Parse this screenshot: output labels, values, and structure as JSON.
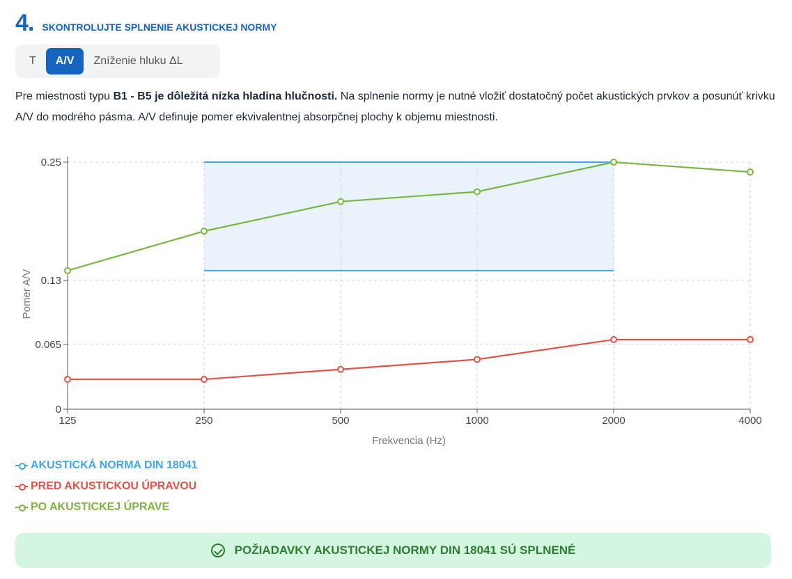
{
  "step": {
    "number": "4.",
    "title": "SKONTROLUJTE SPLNENIE AKUSTICKEJ NORMY"
  },
  "tabs": [
    {
      "label": "T",
      "active": false
    },
    {
      "label": "A/V",
      "active": true
    },
    {
      "label": "Zníženie hluku ΔL",
      "active": false
    }
  ],
  "description": {
    "part1": "Pre miestnosti typu ",
    "bold": "B1 - B5 je dôležitá nízka hladina hlučnosti.",
    "part2": " Na splnenie normy je nutné vložiť dostatočný počet akustických prvkov a posunúť krivku A/V do modrého pásma. A/V definuje pomer ekvivalentnej absorpčnej plochy k objemu miestnosti."
  },
  "colors": {
    "norm": "#42a5e5",
    "before": "#e0524a",
    "after": "#7cb342",
    "band_fill": "#e8f3fc"
  },
  "chart_data": {
    "type": "line",
    "categories": [
      "125",
      "250",
      "500",
      "1000",
      "2000",
      "4000"
    ],
    "xlabel": "Frekvencia (Hz)",
    "ylabel": "Pomer A/V",
    "y_ticks": [
      0,
      0.065,
      0.13,
      0.25
    ],
    "y_tick_labels": [
      "0",
      "0.065",
      "0.13",
      "0.25"
    ],
    "ylim": [
      0,
      0.25
    ],
    "grid": true,
    "norm_band": {
      "from": "250",
      "to": "2000",
      "min": 0.14,
      "max": 0.25
    },
    "series": [
      {
        "name": "AKUSTICKÁ NORMA DIN 18041",
        "key": "norm"
      },
      {
        "name": "PRED AKUSTICKOU ÚPRAVOU",
        "key": "before",
        "values": [
          0.03,
          0.03,
          0.04,
          0.05,
          0.07,
          0.07
        ]
      },
      {
        "name": "PO AKUSTICKEJ ÚPRAVE",
        "key": "after",
        "values": [
          0.14,
          0.18,
          0.21,
          0.22,
          0.25,
          0.24
        ]
      }
    ]
  },
  "status": {
    "text": "POŽIADAVKY AKUSTICKEJ NORMY DIN 18041 SÚ SPLNENÉ"
  }
}
